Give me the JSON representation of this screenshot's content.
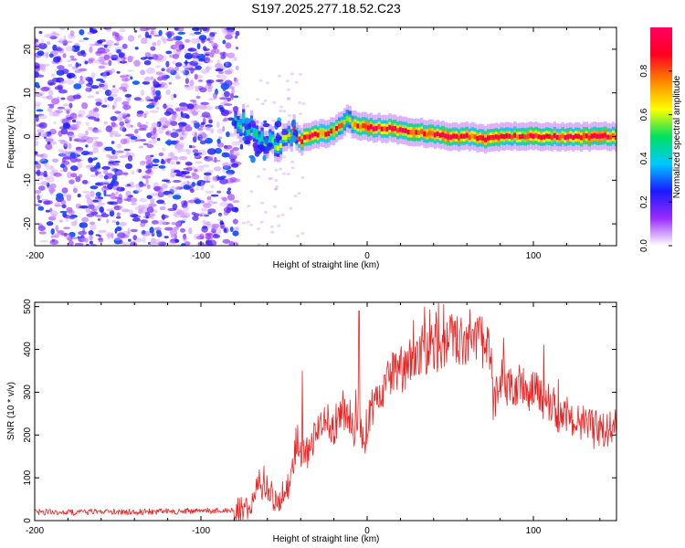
{
  "title": "S197.2025.277.18.52.C23",
  "colors": {
    "snr_line": "#ee2222",
    "axis": "#000000",
    "colormap": [
      "#ffffff",
      "#9a2bff",
      "#1a1aff",
      "#00c8ff",
      "#00e060",
      "#ffff00",
      "#ff8800",
      "#ff0022",
      "#ff0060"
    ]
  },
  "chart_data": [
    {
      "type": "heatmap",
      "title": "S197.2025.277.18.52.C23",
      "xlabel": "Height of straight line (km)",
      "ylabel": "Frequency (Hz)",
      "xlim": [
        -200,
        150
      ],
      "ylim": [
        -25,
        25
      ],
      "x_ticks": [
        -200,
        -100,
        0,
        100
      ],
      "y_ticks": [
        -20,
        -10,
        0,
        10,
        20
      ],
      "ridge": {
        "description": "dominant spectral line",
        "x": [
          -80,
          -75,
          -70,
          -65,
          -60,
          -55,
          -50,
          -45,
          -40,
          -35,
          -30,
          -25,
          -20,
          -15,
          -12,
          -10,
          -5,
          0,
          10,
          20,
          30,
          40,
          50,
          60,
          70,
          80,
          90,
          100,
          110,
          120,
          130,
          140,
          150
        ],
        "frequency": [
          4,
          3,
          1.5,
          0,
          -1,
          -2,
          -0.5,
          0.5,
          0,
          0,
          0.5,
          0.8,
          1.5,
          3,
          4.5,
          3,
          2.5,
          2,
          2,
          1.5,
          1,
          0.5,
          0,
          0,
          -0.5,
          0,
          0,
          0,
          0,
          0,
          0,
          0,
          0
        ],
        "amplitude": [
          0.45,
          0.5,
          0.55,
          0.5,
          0.5,
          0.55,
          0.65,
          0.75,
          0.9,
          0.95,
          0.85,
          0.8,
          0.8,
          0.7,
          0.55,
          0.75,
          0.85,
          0.9,
          0.9,
          0.9,
          0.85,
          0.9,
          0.95,
          0.85,
          0.9,
          0.85,
          0.85,
          0.9,
          0.85,
          0.9,
          0.9,
          0.9,
          0.85
        ]
      },
      "noise_region": {
        "x_from": -200,
        "x_to": -78,
        "typical_amplitude": [
          0.05,
          0.3
        ]
      }
    },
    {
      "type": "colorbar",
      "label": "Normalized spectral amplitude",
      "range": [
        0.0,
        1.0
      ],
      "ticks": [
        "0.0",
        "0.2",
        "0.4",
        "0.6",
        "0.8"
      ]
    },
    {
      "type": "line",
      "title": "",
      "xlabel": "Height of straight line (km)",
      "ylabel": "SNR (10 * v/v)",
      "xlim": [
        -200,
        150
      ],
      "ylim": [
        0,
        510
      ],
      "x_ticks": [
        -200,
        -100,
        0,
        100
      ],
      "y_ticks": [
        0,
        100,
        200,
        300,
        400,
        500
      ],
      "series": [
        {
          "name": "SNR",
          "x": [
            -200,
            -180,
            -160,
            -140,
            -120,
            -100,
            -90,
            -80,
            -75,
            -70,
            -65,
            -60,
            -55,
            -50,
            -45,
            -42,
            -40,
            -38,
            -35,
            -30,
            -25,
            -20,
            -15,
            -10,
            -6,
            -5,
            -4,
            -2,
            0,
            5,
            10,
            15,
            20,
            25,
            30,
            35,
            40,
            45,
            50,
            55,
            60,
            65,
            70,
            72,
            75,
            76,
            80,
            85,
            90,
            95,
            100,
            105,
            110,
            115,
            120,
            125,
            130,
            135,
            140,
            145,
            150
          ],
          "values": [
            20,
            19,
            21,
            20,
            22,
            22,
            23,
            24,
            26,
            40,
            90,
            75,
            45,
            60,
            110,
            200,
            170,
            150,
            170,
            200,
            230,
            220,
            260,
            240,
            200,
            380,
            230,
            170,
            230,
            290,
            320,
            340,
            350,
            370,
            390,
            400,
            405,
            410,
            420,
            425,
            420,
            420,
            415,
            430,
            360,
            260,
            330,
            320,
            320,
            300,
            300,
            290,
            270,
            250,
            250,
            240,
            225,
            215,
            210,
            210,
            215
          ]
        }
      ],
      "spikes": [
        {
          "x": -39,
          "value": 350
        },
        {
          "x": -5,
          "value": 490
        },
        {
          "x": 46,
          "value": 505
        }
      ]
    }
  ]
}
